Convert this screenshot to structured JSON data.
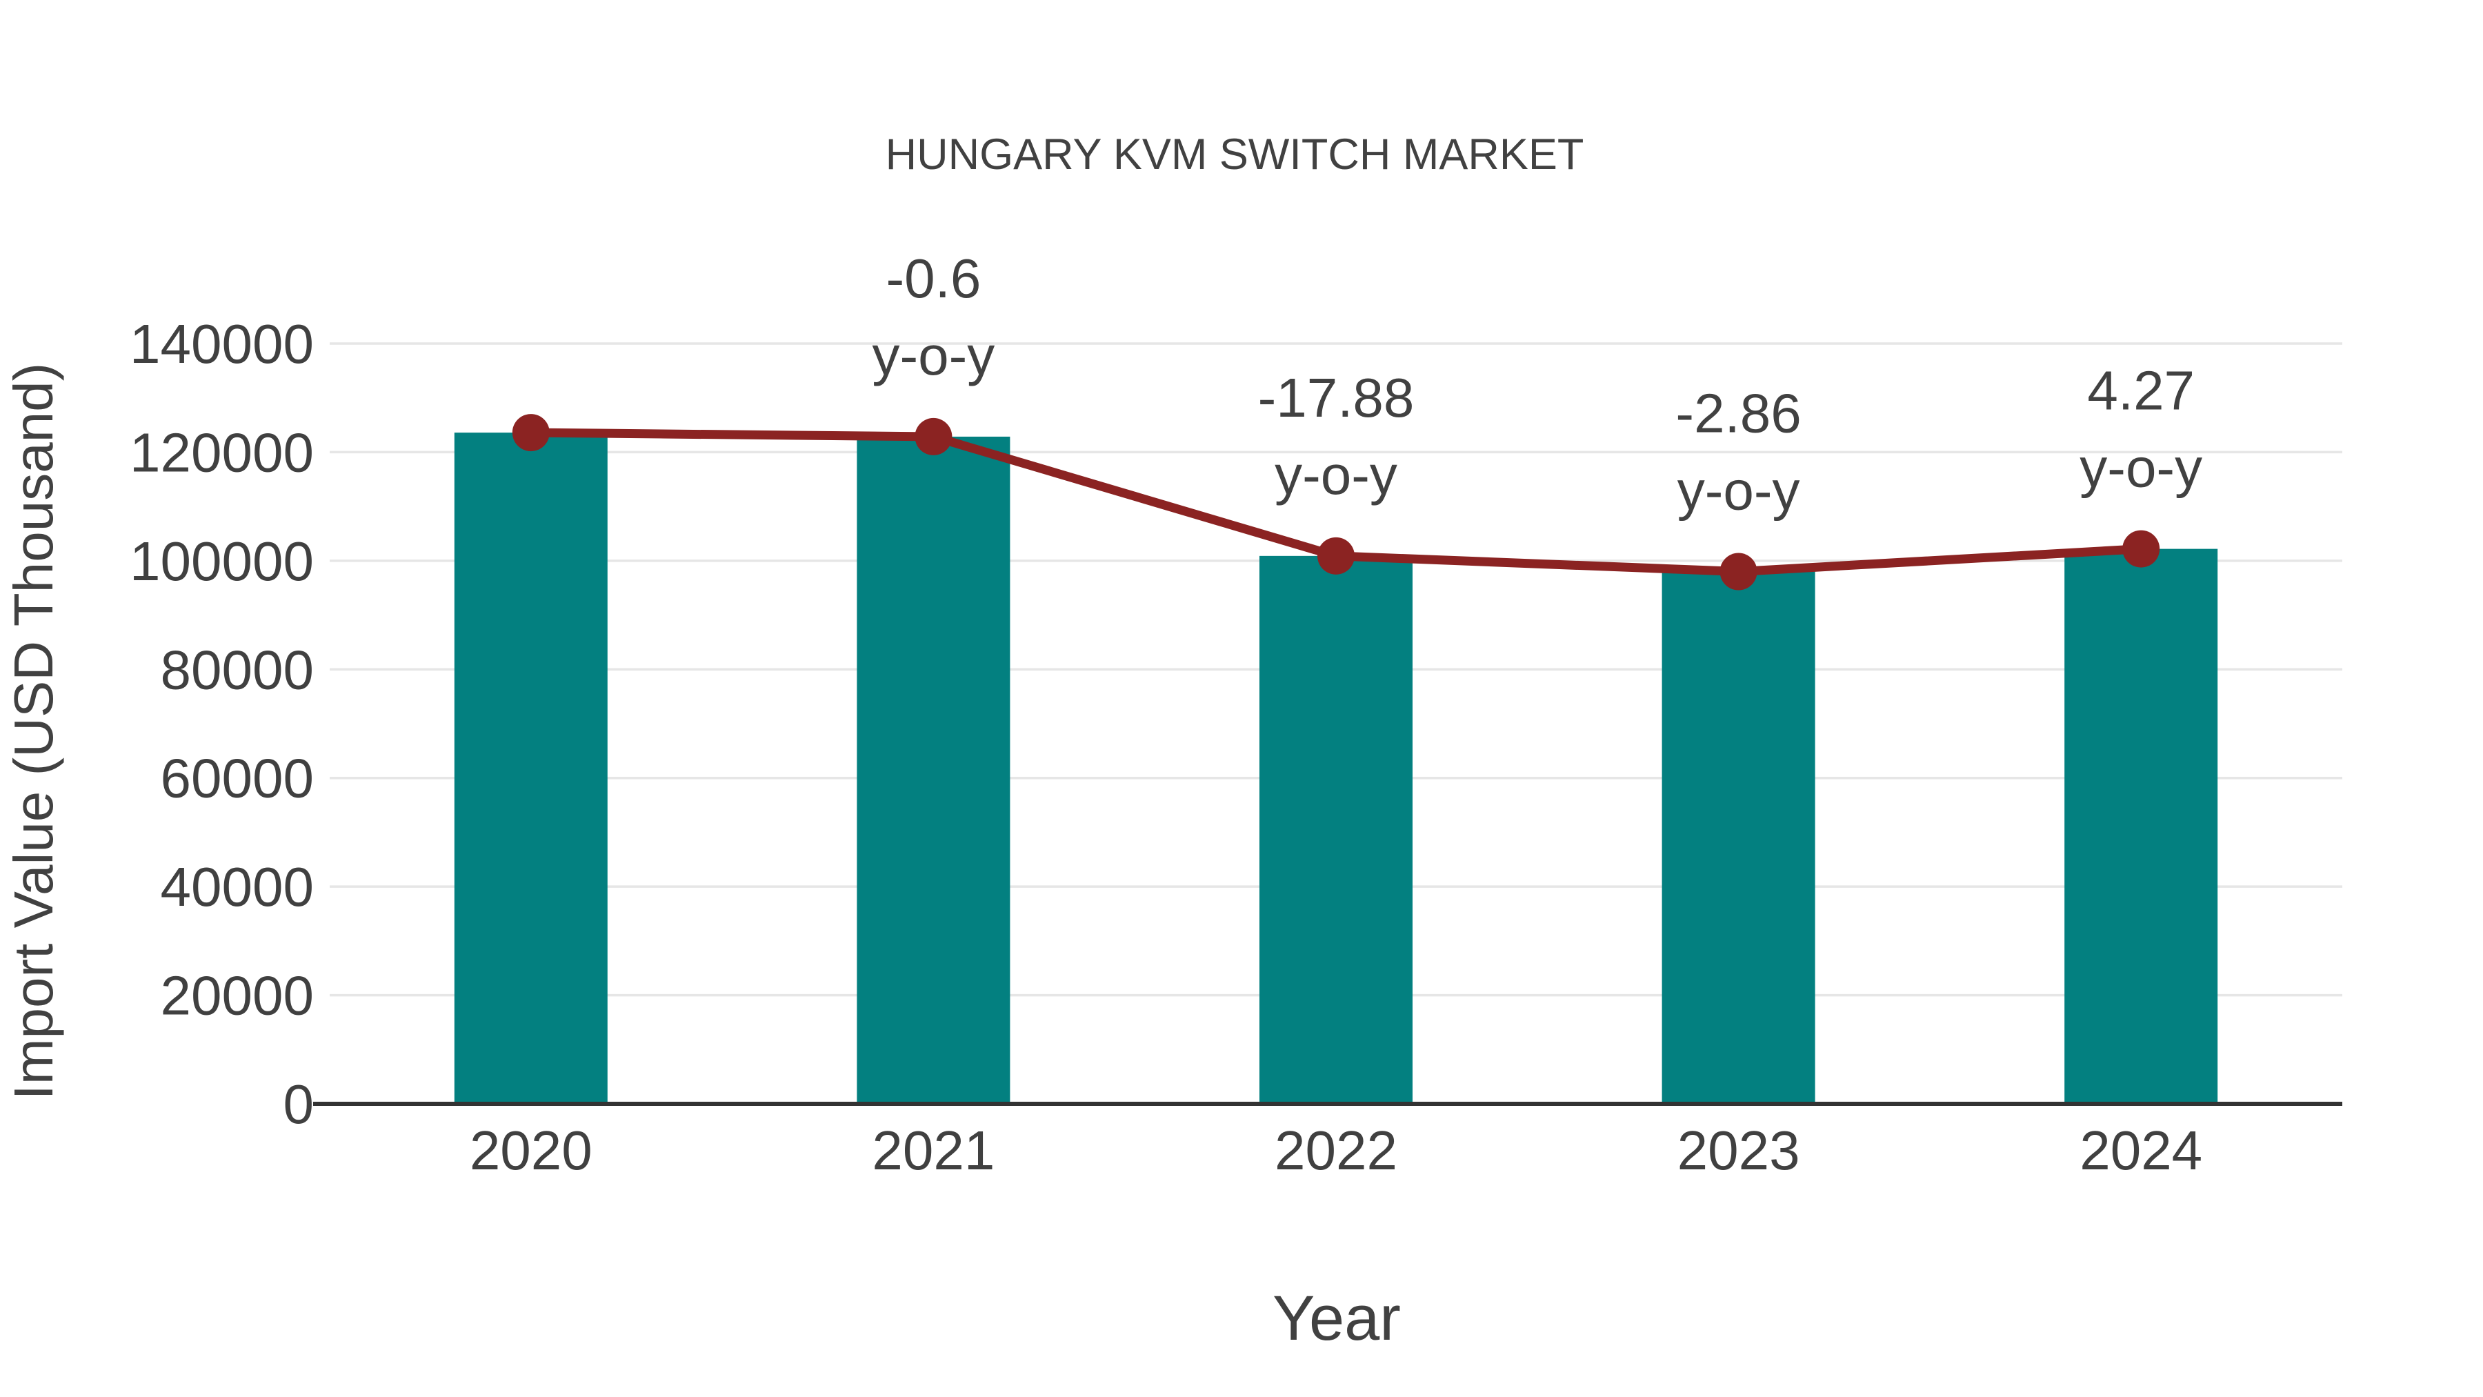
{
  "chart_data": {
    "type": "bar",
    "title": "HUNGARY KVM SWITCH MARKET",
    "xlabel": "Year",
    "ylabel": "Import Value (USD Thousand)",
    "categories": [
      "2020",
      "2021",
      "2022",
      "2023",
      "2024"
    ],
    "series": [
      {
        "name": "Import Value (USD Thousand)",
        "type": "bar",
        "color": "#038080",
        "values": [
          123600,
          122858,
          100891,
          98006,
          102191
        ]
      },
      {
        "name": "Import Value trend",
        "type": "line",
        "color": "#8b2322",
        "marker": "circle",
        "values": [
          123600,
          122858,
          100891,
          98006,
          102191
        ]
      }
    ],
    "yoy_percent": [
      null,
      -0.6,
      -17.88,
      -2.86,
      4.27
    ],
    "annotations": [
      {
        "category": "2021",
        "value_label": "-0.6",
        "suffix_label": "y-o-y"
      },
      {
        "category": "2022",
        "value_label": "-17.88",
        "suffix_label": "y-o-y"
      },
      {
        "category": "2023",
        "value_label": "-2.86",
        "suffix_label": "y-o-y"
      },
      {
        "category": "2024",
        "value_label": "4.27",
        "suffix_label": "y-o-y"
      }
    ],
    "ylim": [
      0,
      140000
    ],
    "ytick_step": 20000,
    "yticks": [
      0,
      20000,
      40000,
      60000,
      80000,
      100000,
      120000,
      140000
    ],
    "ytick_labels": [
      "0",
      "20000",
      "40000",
      "60000",
      "80000",
      "100000",
      "120000",
      "140000"
    ],
    "grid": "horizontal",
    "legend": "none",
    "colors": {
      "bar": "#038080",
      "line": "#8b2322",
      "marker": "#8b2322",
      "text": "#414141",
      "tick_text": "#404040",
      "gridline": "#e6e6e6",
      "axis": "#333333",
      "background": "#ffffff"
    }
  }
}
